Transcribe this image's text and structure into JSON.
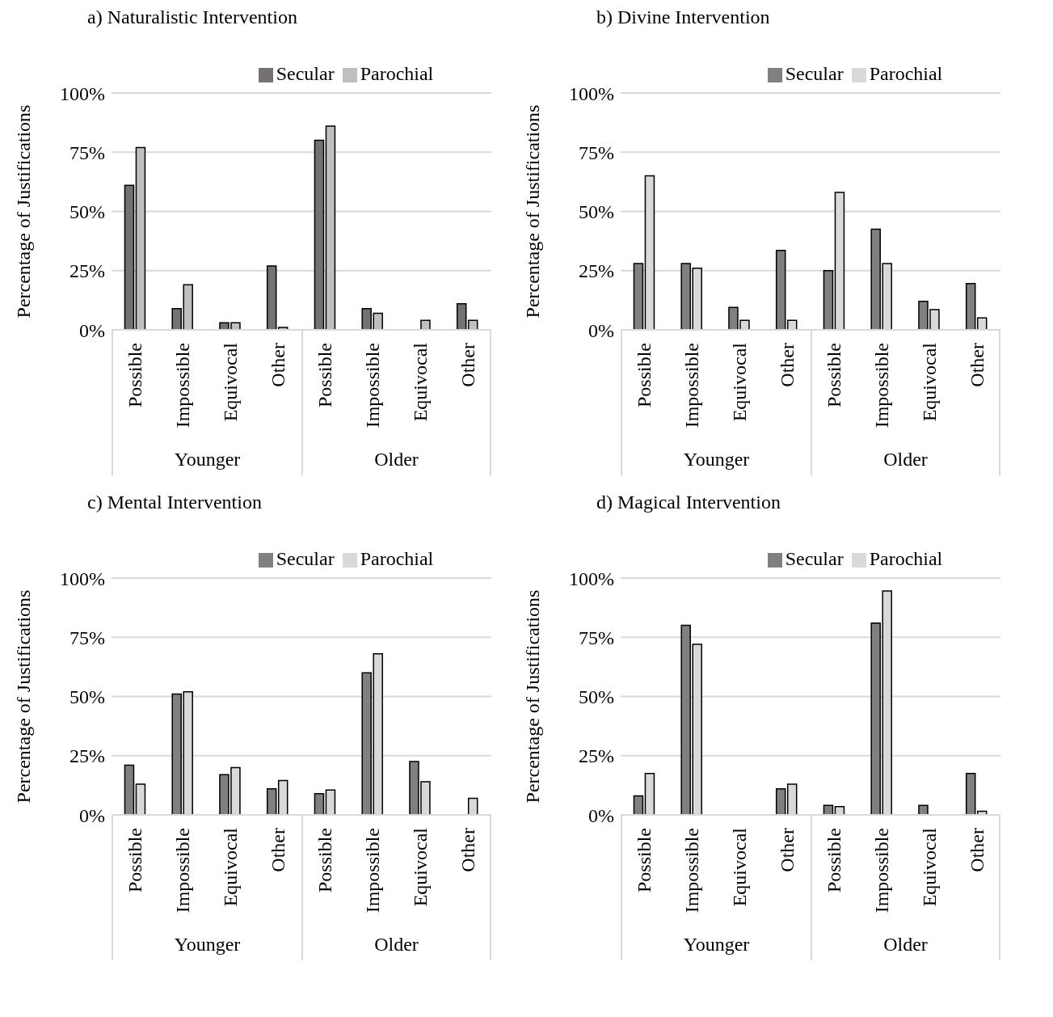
{
  "chart_data": [
    {
      "type": "bar",
      "title": "a)   Naturalistic Intervention",
      "ylabel": "Percentage of Justifications",
      "categories": [
        "Possible",
        "Impossible",
        "Equivocal",
        "Other",
        "Possible",
        "Impossible",
        "Equivocal",
        "Other"
      ],
      "annotations": [
        "Younger",
        "Older"
      ],
      "series": [
        {
          "name": "Secular",
          "color": "#767171",
          "values": [
            61,
            9,
            3,
            27,
            80,
            9,
            null,
            11
          ]
        },
        {
          "name": "Parochial",
          "color": "#bfbfbf",
          "values": [
            77,
            19,
            3,
            1,
            86,
            7,
            4,
            4
          ]
        }
      ],
      "ylim": [
        0,
        100
      ],
      "yticks": [
        {
          "value": 0,
          "label": "0%"
        },
        {
          "value": 25,
          "label": "25%"
        },
        {
          "value": 50,
          "label": "50%"
        },
        {
          "value": 75,
          "label": "75%"
        },
        {
          "value": 100,
          "label": "100%"
        }
      ],
      "grid": "y",
      "legend": "top"
    },
    {
      "type": "bar",
      "title": "b)   Divine Intervention",
      "ylabel": "Percentage of Justifications",
      "categories": [
        "Possible",
        "Impossible",
        "Equivocal",
        "Other",
        "Possible",
        "Impossible",
        "Equivocal",
        "Other"
      ],
      "annotations": [
        "Younger",
        "Older"
      ],
      "series": [
        {
          "name": "Secular",
          "color": "#808080",
          "values": [
            28,
            28,
            9.5,
            33.5,
            25,
            42.5,
            12,
            19.5
          ]
        },
        {
          "name": "Parochial",
          "color": "#d9d9d9",
          "values": [
            65,
            26,
            4,
            4,
            58,
            28,
            8.5,
            5
          ]
        }
      ],
      "ylim": [
        0,
        100
      ],
      "yticks": [
        {
          "value": 0,
          "label": "0%"
        },
        {
          "value": 25,
          "label": "25%"
        },
        {
          "value": 50,
          "label": "50%"
        },
        {
          "value": 75,
          "label": "75%"
        },
        {
          "value": 100,
          "label": "100%"
        }
      ],
      "grid": "y",
      "legend": "top"
    },
    {
      "type": "bar",
      "title": "c)   Mental Intervention",
      "ylabel": "Percentage of Justifications",
      "categories": [
        "Possible",
        "Impossible",
        "Equivocal",
        "Other",
        "Possible",
        "Impossible",
        "Equivocal",
        "Other"
      ],
      "annotations": [
        "Younger",
        "Older"
      ],
      "series": [
        {
          "name": "Secular",
          "color": "#808080",
          "values": [
            21,
            51,
            17,
            11,
            9,
            60,
            22.5,
            null
          ]
        },
        {
          "name": "Parochial",
          "color": "#d9d9d9",
          "values": [
            13,
            52,
            20,
            14.5,
            10.5,
            68,
            14,
            7
          ]
        }
      ],
      "ylim": [
        0,
        100
      ],
      "yticks": [
        {
          "value": 0,
          "label": "0%"
        },
        {
          "value": 25,
          "label": "25%"
        },
        {
          "value": 50,
          "label": "50%"
        },
        {
          "value": 75,
          "label": "75%"
        },
        {
          "value": 100,
          "label": "100%"
        }
      ],
      "grid": "y",
      "legend": "top"
    },
    {
      "type": "bar",
      "title": "d)   Magical Intervention",
      "ylabel": "Percentage of Justifications",
      "categories": [
        "Possible",
        "Impossible",
        "Equivocal",
        "Other",
        "Possible",
        "Impossible",
        "Equivocal",
        "Other"
      ],
      "annotations": [
        "Younger",
        "Older"
      ],
      "series": [
        {
          "name": "Secular",
          "color": "#808080",
          "values": [
            8,
            80,
            null,
            11,
            4,
            81,
            4,
            17.5
          ]
        },
        {
          "name": "Parochial",
          "color": "#d9d9d9",
          "values": [
            17.5,
            72,
            null,
            13,
            3.5,
            94.5,
            null,
            1.5
          ]
        }
      ],
      "ylim": [
        0,
        100
      ],
      "yticks": [
        {
          "value": 0,
          "label": "0%"
        },
        {
          "value": 25,
          "label": "25%"
        },
        {
          "value": 50,
          "label": "50%"
        },
        {
          "value": 75,
          "label": "75%"
        },
        {
          "value": 100,
          "label": "100%"
        }
      ],
      "grid": "y",
      "legend": "top"
    }
  ]
}
